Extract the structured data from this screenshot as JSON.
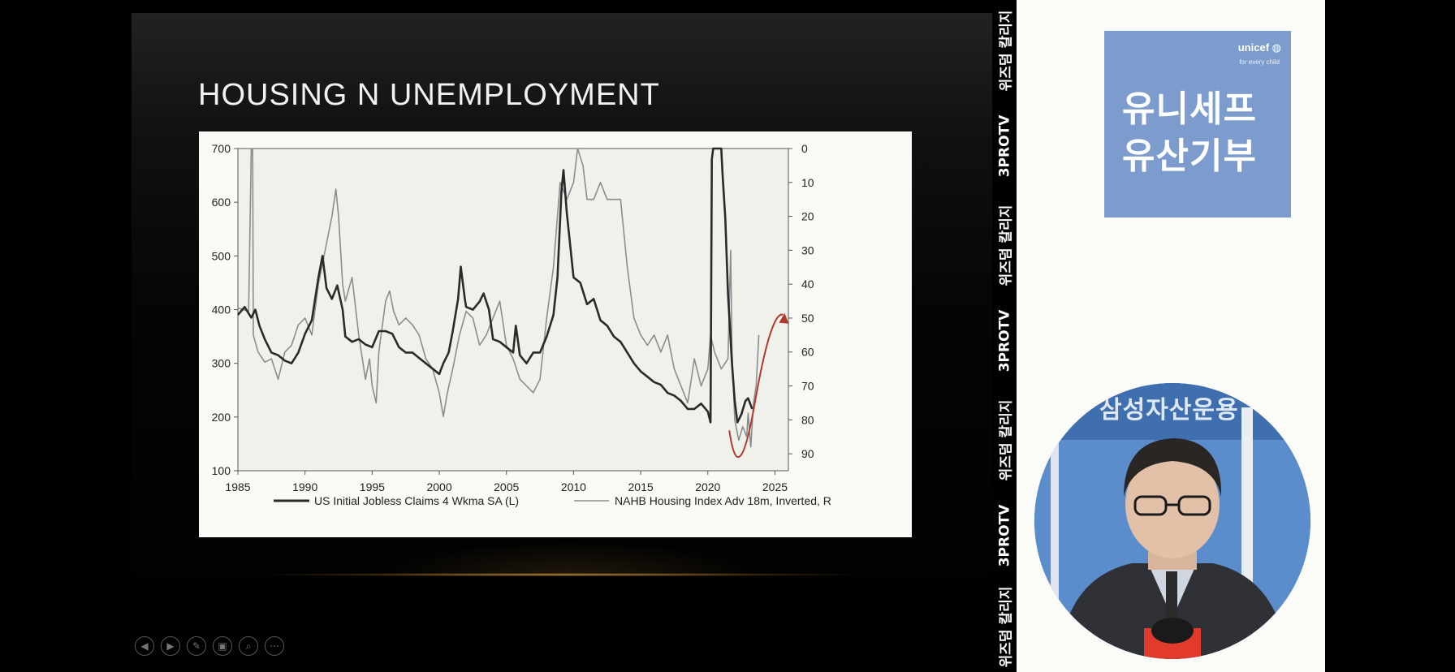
{
  "slide": {
    "title": "HOUSING N UNEMPLOYMENT",
    "controls": [
      {
        "name": "previous-slide-button",
        "icon": "◀"
      },
      {
        "name": "next-slide-button",
        "icon": "▶"
      },
      {
        "name": "pen-tool-button",
        "icon": "✎"
      },
      {
        "name": "slide-sorter-button",
        "icon": "▣"
      },
      {
        "name": "zoom-button",
        "icon": "⌕"
      },
      {
        "name": "more-options-button",
        "icon": "⋯"
      }
    ]
  },
  "chart_data": {
    "type": "line",
    "title": "",
    "x_ticks": [
      "1985",
      "1990",
      "1995",
      "2000",
      "2005",
      "2010",
      "2015",
      "2020",
      "2025"
    ],
    "xlim": [
      1985,
      2026
    ],
    "left_axis": {
      "ticks": [
        "700",
        "600",
        "500",
        "400",
        "300",
        "200",
        "100"
      ],
      "ylim": [
        100,
        700
      ]
    },
    "right_axis": {
      "ticks": [
        "0",
        "10",
        "20",
        "30",
        "40",
        "50",
        "60",
        "70",
        "80",
        "90"
      ],
      "ylim": [
        0,
        95
      ],
      "inverted": true
    },
    "legend_placement": "bottom",
    "grid": false,
    "series": [
      {
        "name": "US Initial Jobless Claims 4 Wkma SA (L)",
        "axis": "left",
        "color": "#2a2a2a",
        "points": [
          [
            1985,
            390
          ],
          [
            1985.5,
            405
          ],
          [
            1986,
            385
          ],
          [
            1986.3,
            400
          ],
          [
            1986.6,
            370
          ],
          [
            1987,
            345
          ],
          [
            1987.5,
            320
          ],
          [
            1988,
            315
          ],
          [
            1988.5,
            305
          ],
          [
            1989,
            300
          ],
          [
            1989.5,
            320
          ],
          [
            1990,
            355
          ],
          [
            1990.5,
            380
          ],
          [
            1991,
            460
          ],
          [
            1991.3,
            500
          ],
          [
            1991.6,
            440
          ],
          [
            1992,
            420
          ],
          [
            1992.4,
            445
          ],
          [
            1992.8,
            400
          ],
          [
            1993,
            350
          ],
          [
            1993.5,
            340
          ],
          [
            1994,
            345
          ],
          [
            1994.5,
            335
          ],
          [
            1995,
            330
          ],
          [
            1995.5,
            360
          ],
          [
            1996,
            360
          ],
          [
            1996.5,
            355
          ],
          [
            1997,
            330
          ],
          [
            1997.5,
            320
          ],
          [
            1998,
            320
          ],
          [
            1998.5,
            310
          ],
          [
            1999,
            300
          ],
          [
            1999.5,
            290
          ],
          [
            2000,
            280
          ],
          [
            2000.3,
            300
          ],
          [
            2000.7,
            320
          ],
          [
            2001,
            360
          ],
          [
            2001.4,
            420
          ],
          [
            2001.6,
            480
          ],
          [
            2001.9,
            420
          ],
          [
            2002,
            405
          ],
          [
            2002.5,
            400
          ],
          [
            2003,
            415
          ],
          [
            2003.3,
            430
          ],
          [
            2003.7,
            400
          ],
          [
            2004,
            345
          ],
          [
            2004.5,
            340
          ],
          [
            2005,
            330
          ],
          [
            2005.5,
            320
          ],
          [
            2005.7,
            370
          ],
          [
            2006,
            315
          ],
          [
            2006.5,
            300
          ],
          [
            2007,
            320
          ],
          [
            2007.5,
            320
          ],
          [
            2008,
            350
          ],
          [
            2008.5,
            390
          ],
          [
            2008.8,
            460
          ],
          [
            2009.1,
            620
          ],
          [
            2009.25,
            660
          ],
          [
            2009.5,
            580
          ],
          [
            2010,
            460
          ],
          [
            2010.5,
            450
          ],
          [
            2011,
            410
          ],
          [
            2011.5,
            420
          ],
          [
            2012,
            380
          ],
          [
            2012.5,
            370
          ],
          [
            2013,
            350
          ],
          [
            2013.5,
            340
          ],
          [
            2014,
            320
          ],
          [
            2014.5,
            300
          ],
          [
            2015,
            285
          ],
          [
            2015.5,
            275
          ],
          [
            2016,
            265
          ],
          [
            2016.5,
            260
          ],
          [
            2017,
            245
          ],
          [
            2017.5,
            240
          ],
          [
            2018,
            230
          ],
          [
            2018.5,
            215
          ],
          [
            2019,
            215
          ],
          [
            2019.5,
            225
          ],
          [
            2020,
            210
          ],
          [
            2020.2,
            190
          ],
          [
            2020.3,
            680
          ],
          [
            2020.4,
            700
          ],
          [
            2021,
            700
          ],
          [
            2021.1,
            650
          ],
          [
            2021.3,
            570
          ],
          [
            2021.5,
            430
          ],
          [
            2021.8,
            300
          ],
          [
            2022,
            230
          ],
          [
            2022.2,
            190
          ],
          [
            2022.5,
            205
          ],
          [
            2022.8,
            230
          ],
          [
            2023,
            235
          ],
          [
            2023.3,
            215
          ]
        ]
      },
      {
        "name": "NAHB Housing Index Adv 18m, Inverted, R",
        "axis": "right",
        "color": "#8c8c8c",
        "points": [
          [
            1985,
            47
          ],
          [
            1985.8,
            48
          ],
          [
            1986,
            0
          ],
          [
            1986.1,
            0
          ],
          [
            1986.15,
            55
          ],
          [
            1986.5,
            60
          ],
          [
            1987,
            63
          ],
          [
            1987.5,
            62
          ],
          [
            1988,
            68
          ],
          [
            1988.5,
            60
          ],
          [
            1989,
            58
          ],
          [
            1989.5,
            52
          ],
          [
            1990,
            50
          ],
          [
            1990.5,
            55
          ],
          [
            1991,
            40
          ],
          [
            1991.5,
            30
          ],
          [
            1992,
            20
          ],
          [
            1992.3,
            12
          ],
          [
            1992.5,
            20
          ],
          [
            1992.8,
            40
          ],
          [
            1993,
            45
          ],
          [
            1993.5,
            38
          ],
          [
            1994,
            55
          ],
          [
            1994.5,
            68
          ],
          [
            1994.8,
            62
          ],
          [
            1995,
            70
          ],
          [
            1995.3,
            75
          ],
          [
            1995.5,
            60
          ],
          [
            1996,
            45
          ],
          [
            1996.3,
            42
          ],
          [
            1996.6,
            48
          ],
          [
            1997,
            52
          ],
          [
            1997.5,
            50
          ],
          [
            1998,
            52
          ],
          [
            1998.5,
            55
          ],
          [
            1999,
            62
          ],
          [
            1999.5,
            65
          ],
          [
            2000,
            72
          ],
          [
            2000.3,
            79
          ],
          [
            2000.6,
            72
          ],
          [
            2001,
            65
          ],
          [
            2001.5,
            55
          ],
          [
            2002,
            48
          ],
          [
            2002.5,
            50
          ],
          [
            2003,
            58
          ],
          [
            2003.5,
            55
          ],
          [
            2004,
            50
          ],
          [
            2004.5,
            45
          ],
          [
            2005,
            58
          ],
          [
            2005.5,
            62
          ],
          [
            2006,
            68
          ],
          [
            2006.5,
            70
          ],
          [
            2007,
            72
          ],
          [
            2007.5,
            68
          ],
          [
            2008,
            50
          ],
          [
            2008.5,
            35
          ],
          [
            2009,
            10
          ],
          [
            2009.5,
            15
          ],
          [
            2010,
            10
          ],
          [
            2010.3,
            0
          ],
          [
            2010.7,
            5
          ],
          [
            2011,
            15
          ],
          [
            2011.5,
            15
          ],
          [
            2012,
            10
          ],
          [
            2012.5,
            15
          ],
          [
            2013,
            15
          ],
          [
            2013.5,
            15
          ],
          [
            2014,
            35
          ],
          [
            2014.5,
            50
          ],
          [
            2015,
            55
          ],
          [
            2015.5,
            58
          ],
          [
            2016,
            55
          ],
          [
            2016.5,
            60
          ],
          [
            2017,
            55
          ],
          [
            2017.5,
            65
          ],
          [
            2018,
            70
          ],
          [
            2018.5,
            75
          ],
          [
            2019,
            62
          ],
          [
            2019.5,
            70
          ],
          [
            2020,
            65
          ],
          [
            2020.2,
            55
          ],
          [
            2020.5,
            60
          ],
          [
            2021,
            65
          ],
          [
            2021.5,
            62
          ],
          [
            2021.7,
            30
          ],
          [
            2021.8,
            60
          ],
          [
            2022,
            80
          ],
          [
            2022.3,
            86
          ],
          [
            2022.6,
            82
          ],
          [
            2022.9,
            85
          ],
          [
            2023,
            78
          ],
          [
            2023.2,
            88
          ],
          [
            2023.4,
            75
          ],
          [
            2023.6,
            70
          ],
          [
            2023.8,
            55
          ]
        ]
      }
    ],
    "annotation": {
      "type": "curved-arrow",
      "color": "#b03a2e"
    }
  },
  "side_strip": {
    "labels": [
      "위즈덤 칼리지",
      "3PROTV",
      "위즈덤 칼리지",
      "3PROTV",
      "위즈덤 칼리지",
      "3PROTV",
      "위즈덤 칼리지"
    ]
  },
  "unicef": {
    "logo": "unicef",
    "tagline": "for every child",
    "line1": "유니세프",
    "line2": "유산기부"
  },
  "webcam": {
    "banner": "삼성자산운용"
  }
}
